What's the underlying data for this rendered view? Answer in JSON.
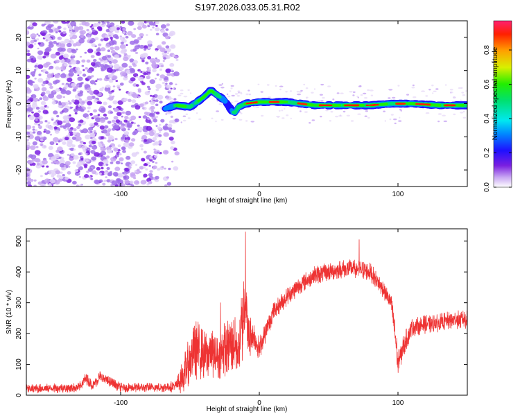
{
  "title": "S197.2026.033.05.31.R02",
  "chart_data": [
    {
      "type": "heatmap",
      "xlabel": "Height of straight line (km)",
      "ylabel": "Frequency (Hz)",
      "xlim": [
        -168,
        150
      ],
      "ylim": [
        -25,
        25
      ],
      "xticks": [
        -100,
        0,
        100
      ],
      "yticks": [
        -20,
        -10,
        0,
        10,
        20
      ],
      "xtick_labels": [
        "-100",
        "0",
        "100"
      ],
      "ytick_labels": [
        "-20",
        "-10",
        "0",
        "10",
        "20"
      ],
      "colorbar": {
        "label": "Normalized spectral amplitude",
        "range": [
          0,
          0.97
        ],
        "ticks": [
          0.0,
          0.2,
          0.4,
          0.6,
          0.8
        ],
        "tick_labels": [
          "0.0",
          "0.2",
          "0.4",
          "0.6",
          "0.8"
        ]
      },
      "noise_region": {
        "x_from": -168,
        "x_to": -65,
        "amplitude": "low"
      },
      "ridge": {
        "x": [
          -68,
          -60,
          -50,
          -45,
          -40,
          -35,
          -30,
          -25,
          -20,
          -18,
          -15,
          -10,
          0,
          20,
          40,
          60,
          80,
          95,
          110,
          130,
          150
        ],
        "frequency": [
          -1.5,
          -0.5,
          -1,
          0.5,
          2,
          4,
          2.5,
          1,
          -2,
          -3,
          -1,
          0,
          0.5,
          0.5,
          -0.5,
          -0.5,
          -0.5,
          0,
          0,
          -0.5,
          -0.5
        ],
        "amplitude": [
          0.3,
          0.6,
          0.5,
          0.6,
          0.6,
          0.7,
          0.6,
          0.4,
          0.3,
          0.4,
          0.5,
          0.75,
          0.9,
          0.6,
          0.8,
          0.8,
          0.8,
          0.6,
          0.85,
          0.8,
          0.7
        ]
      }
    },
    {
      "type": "line",
      "xlabel": "Height of straight line (km)",
      "ylabel": "SNR (10 * v/v)",
      "xlim": [
        -168,
        150
      ],
      "ylim": [
        0,
        540
      ],
      "xticks": [
        -100,
        0,
        100
      ],
      "yticks": [
        0,
        100,
        200,
        300,
        400,
        500
      ],
      "xtick_labels": [
        "-100",
        "0",
        "100"
      ],
      "ytick_labels": [
        "0",
        "100",
        "200",
        "300",
        "400",
        "500"
      ],
      "color": "#ee3333",
      "series": [
        {
          "name": "SNR",
          "x": [
            -168,
            -130,
            -125,
            -120,
            -115,
            -100,
            -70,
            -60,
            -55,
            -50,
            -45,
            -40,
            -35,
            -30,
            -25,
            -20,
            -15,
            -12,
            -10,
            -8,
            -5,
            0,
            10,
            20,
            30,
            40,
            50,
            60,
            70,
            80,
            90,
            95,
            98,
            100,
            103,
            110,
            120,
            130,
            140,
            150
          ],
          "y": [
            20,
            25,
            55,
            30,
            60,
            25,
            25,
            30,
            60,
            120,
            150,
            130,
            140,
            120,
            150,
            170,
            150,
            250,
            330,
            180,
            200,
            150,
            270,
            320,
            360,
            390,
            400,
            410,
            410,
            400,
            340,
            300,
            200,
            100,
            150,
            220,
            230,
            235,
            245,
            245
          ],
          "noise_amplitude": [
            15,
            15,
            20,
            15,
            20,
            15,
            15,
            20,
            60,
            80,
            100,
            80,
            80,
            70,
            90,
            100,
            90,
            150,
            120,
            80,
            60,
            40,
            30,
            30,
            30,
            30,
            30,
            30,
            30,
            30,
            30,
            30,
            60,
            40,
            40,
            30,
            30,
            30,
            30,
            30
          ],
          "spikes": [
            {
              "x": -10,
              "y": 530
            },
            {
              "x": 72,
              "y": 505
            },
            {
              "x": -28,
              "y": 300
            }
          ]
        }
      ]
    }
  ]
}
